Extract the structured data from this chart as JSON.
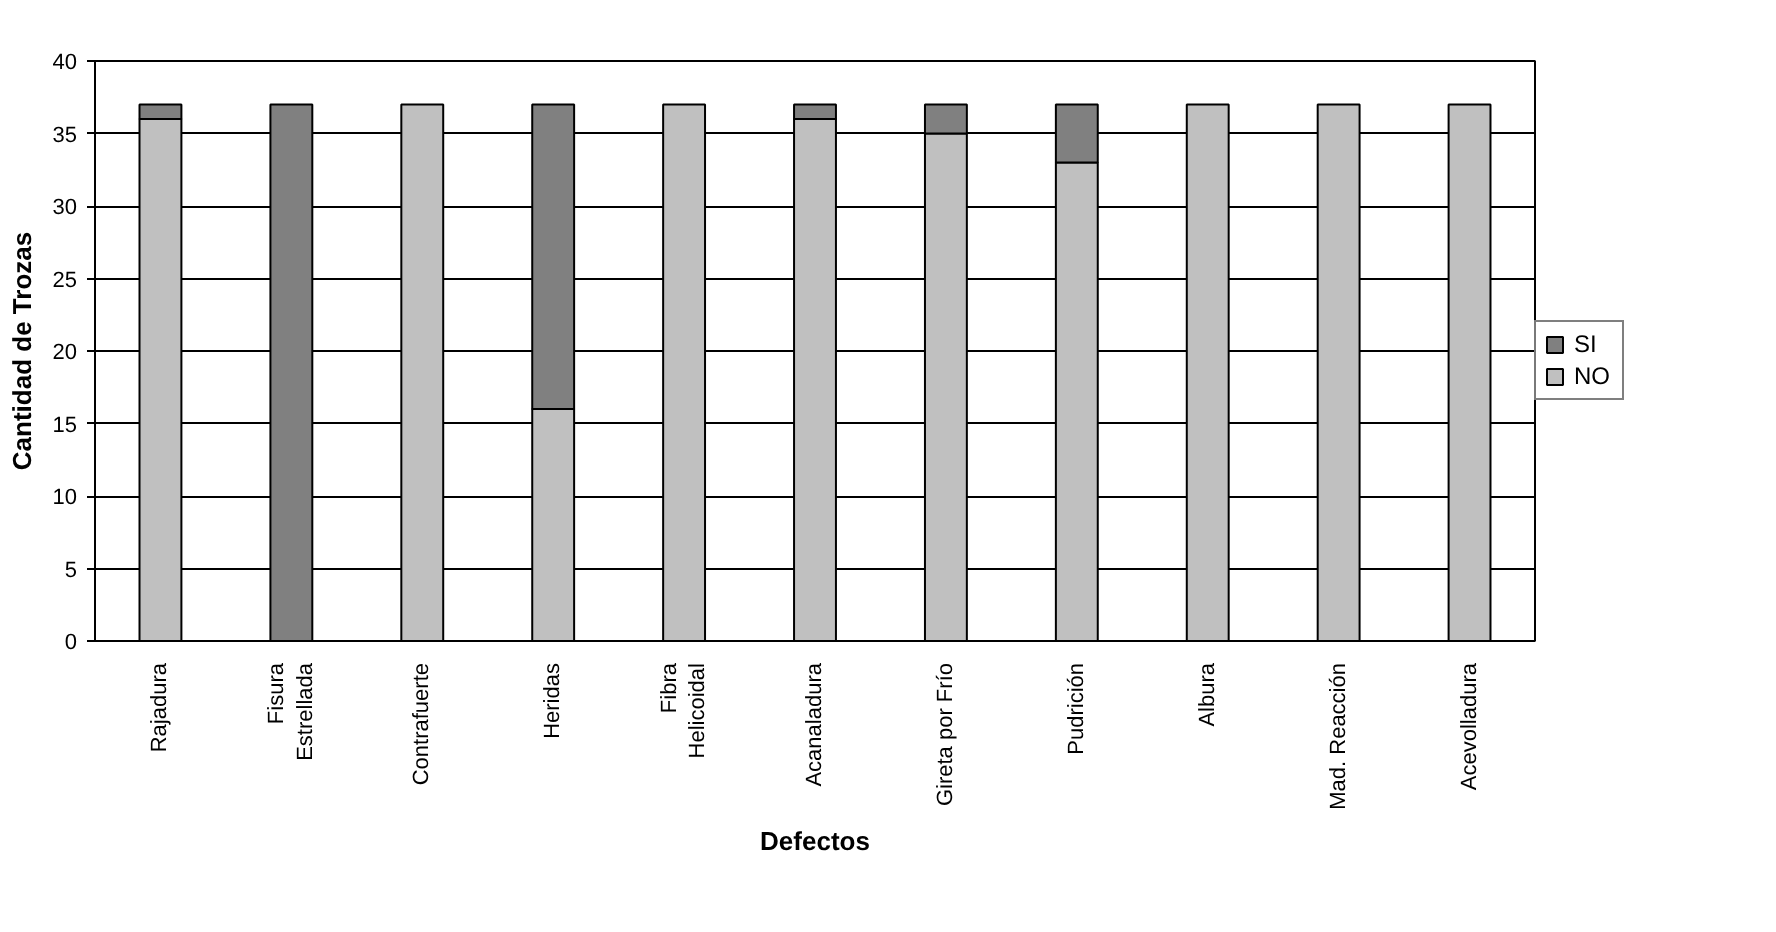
{
  "chart_data": {
    "type": "bar",
    "stacked": true,
    "xlabel": "Defectos",
    "ylabel": "Cantidad de Trozas",
    "categories": [
      "Rajadura",
      "Fisura\nEstrellada",
      "Contrafuerte",
      "Heridas",
      "Fibra\nHelicoidal",
      "Acanaladura",
      "Gireta por Frío",
      "Pudrición",
      "Albura",
      "Mad. Reacción",
      "Acevolladura"
    ],
    "series": [
      {
        "name": "NO",
        "color": "#c0c0c0",
        "values": [
          36,
          0,
          37,
          16,
          37,
          36,
          35,
          33,
          37,
          37,
          37
        ]
      },
      {
        "name": "SI",
        "color": "#808080",
        "values": [
          1,
          37,
          0,
          21,
          0,
          1,
          2,
          4,
          0,
          0,
          0
        ]
      }
    ],
    "ylim": [
      0,
      40
    ],
    "yticks": [
      0,
      5,
      10,
      15,
      20,
      25,
      30,
      35,
      40
    ],
    "grid": "y",
    "legend": "right"
  }
}
